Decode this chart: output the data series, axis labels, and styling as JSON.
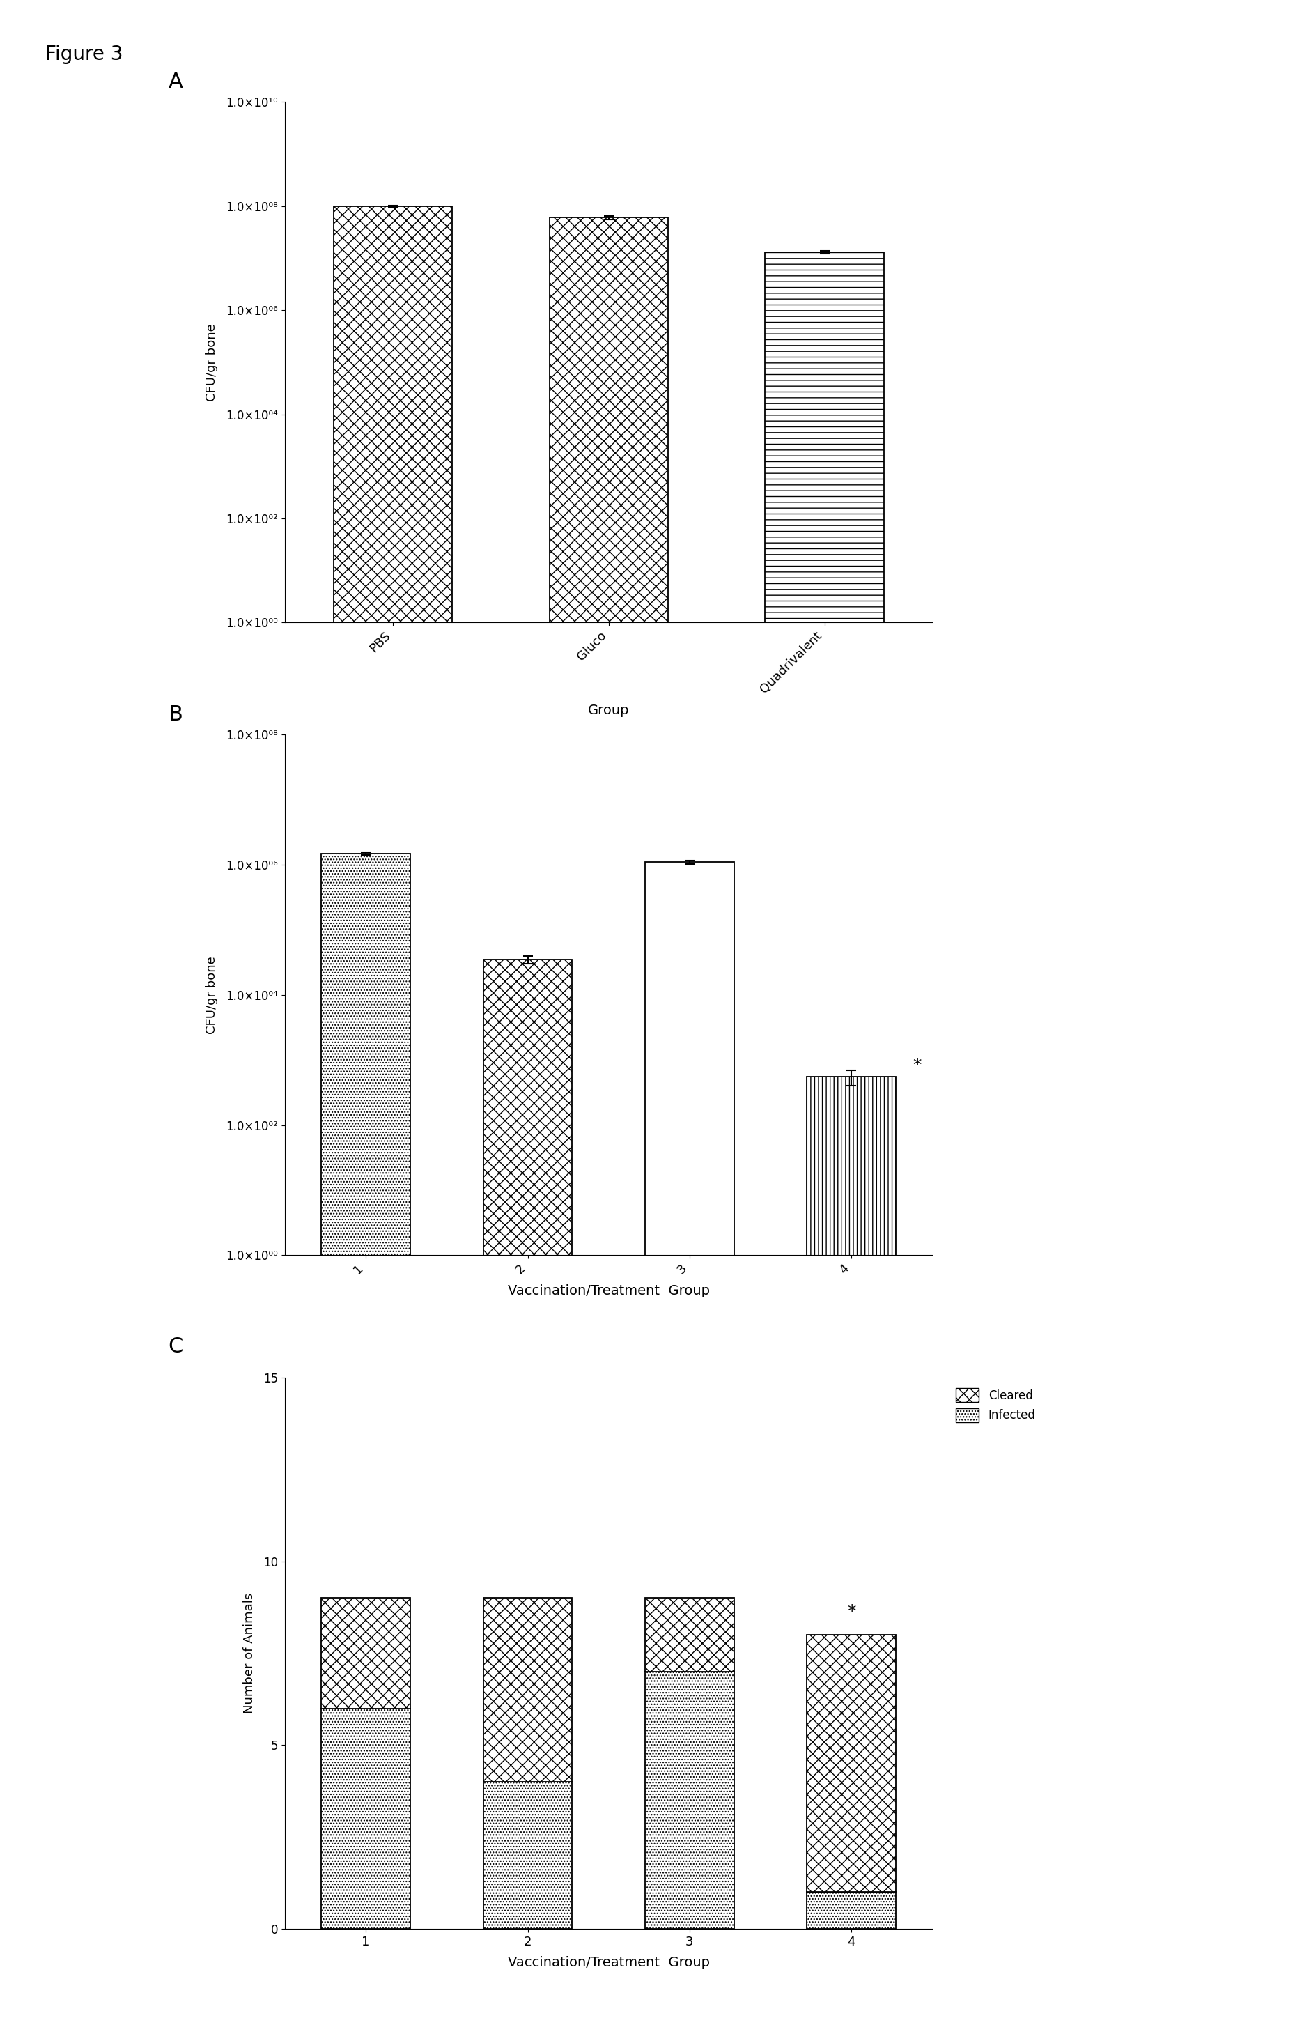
{
  "figure_label": "Figure 3",
  "panel_A": {
    "label": "A",
    "categories": [
      "PBS",
      "Gluco",
      "Quadrivalent"
    ],
    "values": [
      100000000.0,
      60000000.0,
      13000000.0
    ],
    "errors_up": [
      3000000.0,
      4000000.0,
      800000.0
    ],
    "errors_dn": [
      3000000.0,
      4000000.0,
      800000.0
    ],
    "hatch_list": [
      "xx",
      "xx",
      "--"
    ],
    "ylim_lo": 1.0,
    "ylim_hi": 10000000000.0,
    "yticks": [
      1.0,
      100.0,
      10000.0,
      1000000.0,
      100000000.0,
      10000000000.0
    ],
    "ytick_labels": [
      "1.0×10⁰⁰",
      "1.0×10⁰²",
      "1.0×10⁰⁴",
      "1.0×10⁰⁶",
      "1.0×10⁰⁸",
      "1.0×10¹⁰"
    ],
    "ylabel": "CFU/gr bone",
    "xlabel": "Group",
    "bar_width": 0.55
  },
  "panel_B": {
    "label": "B",
    "categories": [
      "1",
      "2",
      "3",
      "4"
    ],
    "values": [
      1500000.0,
      35000.0,
      1100000.0,
      550.0
    ],
    "errors_up": [
      80000.0,
      5000.0,
      70000.0,
      150.0
    ],
    "errors_dn": [
      80000.0,
      5000.0,
      70000.0,
      150.0
    ],
    "hatch_list": [
      "....",
      "xx",
      "==",
      "|||"
    ],
    "ylim_lo": 1.0,
    "ylim_hi": 100000000.0,
    "yticks": [
      1.0,
      100.0,
      10000.0,
      1000000.0,
      100000000.0
    ],
    "ytick_labels": [
      "1.0×10⁰⁰",
      "1.0×10⁰²",
      "1.0×10⁰⁴",
      "1.0×10⁰⁶",
      "1.0×10⁰⁸"
    ],
    "ylabel": "CFU/gr bone",
    "xlabel": "Vaccination/Treatment  Group",
    "bar_width": 0.55,
    "sig_bar_index": 3,
    "sig_text": "*"
  },
  "panel_C": {
    "label": "C",
    "categories": [
      "1",
      "2",
      "3",
      "4"
    ],
    "infected": [
      6,
      4,
      7,
      1
    ],
    "cleared": [
      3,
      5,
      2,
      7
    ],
    "ylim": [
      0,
      15
    ],
    "yticks": [
      0,
      5,
      10,
      15
    ],
    "ylabel": "Number of Animals",
    "xlabel": "Vaccination/Treatment  Group",
    "cleared_hatch": "xx",
    "infected_hatch": "....",
    "bar_width": 0.55,
    "sig_bar_index": 3,
    "sig_text": "*",
    "legend_labels": [
      "Cleared",
      "Infected"
    ]
  }
}
